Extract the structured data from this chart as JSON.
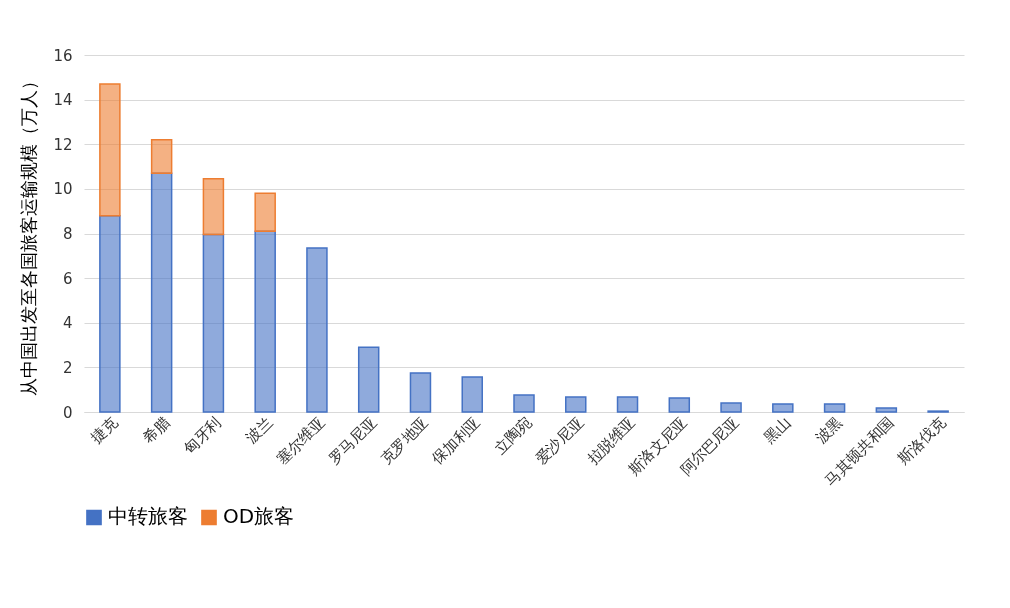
{
  "chart_data": {
    "type": "bar",
    "stacked": true,
    "ylabel": "从中国出发至各国旅客运输规模（万人）",
    "categories": [
      "捷克",
      "希腊",
      "匈牙利",
      "波兰",
      "塞尔维亚",
      "罗马尼亚",
      "克罗地亚",
      "保加利亚",
      "立陶宛",
      "爱沙尼亚",
      "拉脱维亚",
      "斯洛文尼亚",
      "阿尔巴尼亚",
      "黑山",
      "波黑",
      "马其顿共和国",
      "斯洛伐克"
    ],
    "series": [
      {
        "name": "中转旅客",
        "color": "#4472c4",
        "values": [
          8.8,
          10.7,
          7.95,
          8.1,
          7.35,
          2.9,
          1.75,
          1.57,
          0.76,
          0.67,
          0.67,
          0.63,
          0.4,
          0.36,
          0.36,
          0.18,
          0.04
        ]
      },
      {
        "name": "OD旅客",
        "color": "#ed7d31",
        "values": [
          5.9,
          1.5,
          2.5,
          1.7,
          null,
          null,
          null,
          null,
          null,
          null,
          null,
          null,
          null,
          null,
          null,
          null,
          null
        ]
      }
    ],
    "ylim": [
      0,
      16
    ],
    "yticks": [
      0,
      2,
      4,
      6,
      8,
      10,
      12,
      14,
      16
    ],
    "grid": "y",
    "legend": "bottom"
  }
}
